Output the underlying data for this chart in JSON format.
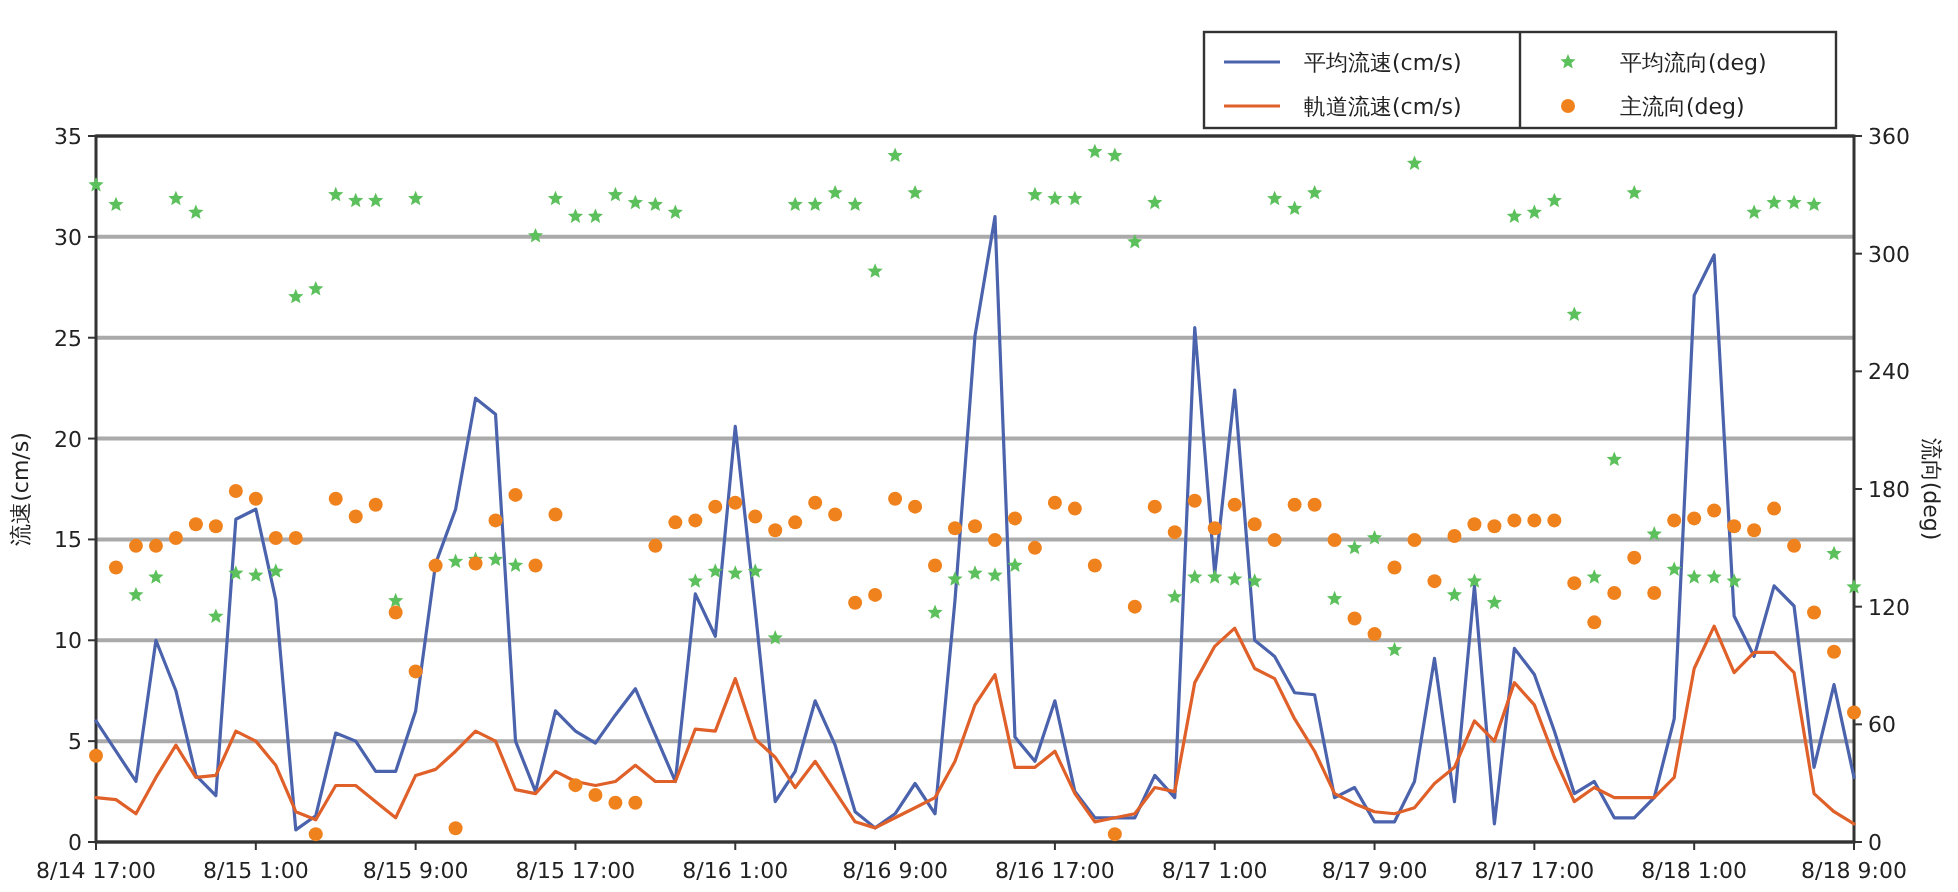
{
  "chart_data": {
    "type": "line",
    "ylabel": "流速(cm/s)",
    "y2label": "流向(deg)",
    "categories": [
      "8/14 17:00",
      null,
      null,
      null,
      null,
      null,
      null,
      null,
      "8/15 1:00",
      null,
      null,
      null,
      null,
      null,
      null,
      null,
      "8/15 9:00",
      null,
      null,
      null,
      null,
      null,
      null,
      null,
      "8/15 17:00",
      null,
      null,
      null,
      null,
      null,
      null,
      null,
      "8/16 1:00",
      null,
      null,
      null,
      null,
      null,
      null,
      null,
      "8/16 9:00",
      null,
      null,
      null,
      null,
      null,
      null,
      null,
      "8/16 17:00",
      null,
      null,
      null,
      null,
      null,
      null,
      null,
      "8/17 1:00",
      null,
      null,
      null,
      null,
      null,
      null,
      null,
      "8/17 9:00",
      null,
      null,
      null,
      null,
      null,
      null,
      null,
      "8/17 17:00",
      null,
      null,
      null,
      null,
      null,
      null,
      null,
      "8/18 1:00",
      null,
      null,
      null,
      null,
      null,
      null,
      null,
      "8/18 9:00"
    ],
    "ylim": [
      0,
      35
    ],
    "yticks": [
      0,
      5,
      10,
      15,
      20,
      25,
      30,
      35
    ],
    "y2lim": [
      0,
      360
    ],
    "y2ticks": [
      0,
      60,
      120,
      180,
      240,
      300,
      360
    ],
    "grid": "y",
    "legend": "top right",
    "series": [
      {
        "name": "平均流速(cm/s)",
        "color": "#4b63ad",
        "values": [
          6.0,
          4.5,
          3.0,
          10.0,
          7.5,
          3.3,
          2.3,
          16.0,
          16.5,
          12.0,
          0.6,
          1.3,
          5.4,
          5.0,
          3.5,
          3.5,
          6.5,
          13.8,
          16.5,
          22.0,
          21.2,
          5.0,
          2.5,
          6.5,
          5.5,
          4.9,
          6.3,
          7.6,
          5.3,
          3.0,
          12.3,
          10.2,
          20.6,
          11.5,
          2.0,
          3.5,
          7.0,
          4.8,
          1.5,
          0.7,
          1.4,
          2.9,
          1.4,
          12.0,
          25.1,
          31.0,
          5.2,
          4.0,
          7.0,
          2.5,
          1.2,
          1.2,
          1.2,
          3.3,
          2.2,
          25.5,
          13.3,
          22.4,
          10.0,
          9.2,
          7.4,
          7.3,
          2.2,
          2.7,
          1.0,
          1.0,
          3.0,
          9.1,
          2.0,
          12.7,
          0.9,
          9.6,
          8.3,
          5.5,
          2.4,
          3.0,
          1.2,
          1.2,
          2.2,
          6.1,
          27.1,
          29.1,
          11.2,
          9.2,
          12.7,
          11.7,
          3.7,
          7.8,
          3.2
        ]
      },
      {
        "name": "軌道流速(cm/s)",
        "color": "#e0602a",
        "values": [
          2.2,
          2.1,
          1.4,
          3.2,
          4.8,
          3.2,
          3.3,
          5.5,
          5.0,
          3.8,
          1.5,
          1.1,
          2.8,
          2.8,
          2.0,
          1.2,
          3.3,
          3.6,
          4.5,
          5.5,
          5.0,
          2.6,
          2.4,
          3.5,
          3.0,
          2.8,
          3.0,
          3.8,
          3.0,
          3.0,
          5.6,
          5.5,
          8.1,
          5.1,
          4.2,
          2.7,
          4.0,
          2.5,
          1.0,
          0.7,
          1.2,
          1.7,
          2.2,
          4.0,
          6.8,
          8.3,
          3.7,
          3.7,
          4.5,
          2.4,
          1.0,
          1.2,
          1.4,
          2.7,
          2.5,
          7.9,
          9.7,
          10.6,
          8.6,
          8.1,
          6.1,
          4.5,
          2.4,
          1.9,
          1.5,
          1.4,
          1.7,
          2.9,
          3.7,
          6.0,
          5.0,
          7.9,
          6.8,
          4.2,
          2.0,
          2.7,
          2.2,
          2.2,
          2.2,
          3.2,
          8.6,
          10.7,
          8.4,
          9.4,
          9.4,
          8.4,
          2.4,
          1.5,
          0.9
        ]
      },
      {
        "name": "平均流向(deg)",
        "type": "scatter",
        "axis": "y2",
        "marker": "star",
        "color": "#5cc05c",
        "values": [
          335,
          325,
          126,
          135,
          328,
          321,
          115,
          137,
          136,
          138,
          278,
          282,
          330,
          327,
          327,
          123,
          328,
          null,
          143,
          144,
          144,
          141,
          309,
          328,
          319,
          319,
          330,
          326,
          325,
          321,
          133,
          138,
          137,
          138,
          104,
          325,
          325,
          331,
          325,
          291,
          350,
          331,
          117,
          134,
          137,
          136,
          141,
          330,
          328,
          328,
          352,
          350,
          306,
          326,
          125,
          135,
          135,
          134,
          133,
          328,
          323,
          331,
          124,
          150,
          155,
          98,
          346,
          null,
          126,
          133,
          122,
          319,
          321,
          327,
          269,
          135,
          195,
          331,
          157,
          139,
          135,
          135,
          133,
          321,
          326,
          326,
          325,
          147,
          130
        ]
      },
      {
        "name": "主流向(deg)",
        "type": "scatter",
        "axis": "y2",
        "marker": "circle",
        "color": "#f0821e",
        "values": [
          44,
          140,
          151,
          151,
          155,
          162,
          161,
          179,
          175,
          155,
          155,
          4,
          175,
          166,
          172,
          117,
          87,
          141,
          7,
          142,
          164,
          177,
          141,
          167,
          29,
          24,
          20,
          20,
          151,
          163,
          164,
          171,
          173,
          166,
          159,
          163,
          173,
          167,
          122,
          126,
          175,
          171,
          141,
          160,
          161,
          154,
          165,
          150,
          173,
          170,
          141,
          4,
          120,
          171,
          158,
          174,
          160,
          172,
          162,
          154,
          172,
          172,
          154,
          114,
          106,
          140,
          154,
          133,
          156,
          162,
          161,
          164,
          164,
          164,
          132,
          112,
          127,
          145,
          127,
          164,
          165,
          169,
          161,
          159,
          170,
          151,
          117,
          97,
          66
        ]
      }
    ]
  }
}
